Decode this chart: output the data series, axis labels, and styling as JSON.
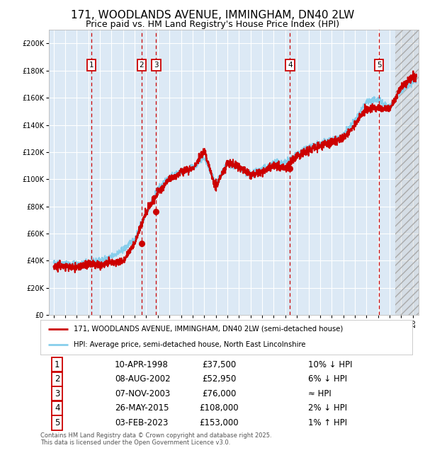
{
  "title": "171, WOODLANDS AVENUE, IMMINGHAM, DN40 2LW",
  "subtitle": "Price paid vs. HM Land Registry's House Price Index (HPI)",
  "legend_line1": "171, WOODLANDS AVENUE, IMMINGHAM, DN40 2LW (semi-detached house)",
  "legend_line2": "HPI: Average price, semi-detached house, North East Lincolnshire",
  "footer": "Contains HM Land Registry data © Crown copyright and database right 2025.\nThis data is licensed under the Open Government Licence v3.0.",
  "sale_points": [
    {
      "label": "1",
      "date": "10-APR-1998",
      "price": 37500,
      "year": 1998.28,
      "hpi_pct": "10% ↓ HPI"
    },
    {
      "label": "2",
      "date": "08-AUG-2002",
      "price": 52950,
      "year": 2002.6,
      "hpi_pct": "6% ↓ HPI"
    },
    {
      "label": "3",
      "date": "07-NOV-2003",
      "price": 76000,
      "year": 2003.85,
      "hpi_pct": "≈ HPI"
    },
    {
      "label": "4",
      "date": "26-MAY-2015",
      "price": 108000,
      "year": 2015.4,
      "hpi_pct": "2% ↓ HPI"
    },
    {
      "label": "5",
      "date": "03-FEB-2023",
      "price": 153000,
      "year": 2023.09,
      "hpi_pct": "1% ↑ HPI"
    }
  ],
  "price_line_color": "#cc0000",
  "hpi_line_color": "#87CEEB",
  "vline_color": "#cc0000",
  "point_color": "#cc0000",
  "plot_bg_color": "#dce9f5",
  "ylim": [
    0,
    210000
  ],
  "xlim_start": 1994.6,
  "xlim_end": 2026.5,
  "ytick_step": 20000,
  "grid_color": "#ffffff",
  "title_fontsize": 11,
  "subtitle_fontsize": 9,
  "axis_fontsize": 7,
  "hpi_anchors_years": [
    1995,
    1996,
    1997,
    1998,
    1999,
    2000,
    2001,
    2002,
    2003,
    2004,
    2005,
    2006,
    2007,
    2008,
    2009,
    2010,
    2011,
    2012,
    2013,
    2014,
    2015,
    2016,
    2017,
    2018,
    2019,
    2020,
    2021,
    2022,
    2023,
    2024,
    2025,
    2026
  ],
  "hpi_anchors_vals": [
    38500,
    38000,
    37000,
    38500,
    40000,
    43000,
    48000,
    56000,
    75000,
    93000,
    101000,
    106000,
    108000,
    116000,
    96000,
    112000,
    108000,
    104000,
    107000,
    112000,
    112000,
    119000,
    123000,
    126000,
    129000,
    132000,
    143000,
    157000,
    159000,
    153000,
    166000,
    172000
  ],
  "prop_anchors_years": [
    1995,
    1996,
    1997,
    1998,
    1999,
    2000,
    2001,
    2002,
    2003,
    2004,
    2005,
    2006,
    2007,
    2008,
    2009,
    2010,
    2011,
    2012,
    2013,
    2014,
    2015,
    2016,
    2017,
    2018,
    2019,
    2020,
    2021,
    2022,
    2023,
    2024,
    2025,
    2026
  ],
  "prop_anchors_vals": [
    36500,
    36000,
    35000,
    37500,
    37000,
    38500,
    40000,
    52950,
    76000,
    90000,
    100000,
    105000,
    108000,
    121000,
    94000,
    112000,
    110000,
    103000,
    106000,
    110000,
    108000,
    117000,
    121000,
    125000,
    127000,
    130000,
    140000,
    152000,
    153000,
    152000,
    168000,
    175000
  ],
  "hatch_start": 2024.5
}
